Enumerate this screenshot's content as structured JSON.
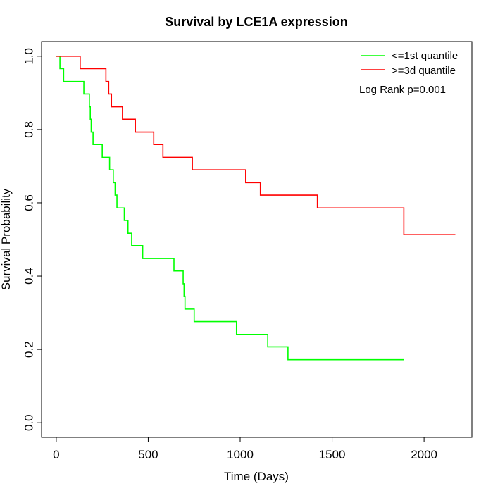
{
  "chart_data": {
    "type": "line",
    "title": "Survival by LCE1A expression",
    "xlabel": "Time (Days)",
    "ylabel": "Survival Probability",
    "xlim": [
      -80,
      2260
    ],
    "ylim": [
      -0.04,
      1.04
    ],
    "xticks": [
      0,
      500,
      1000,
      1500,
      2000
    ],
    "xtick_labels": [
      "0",
      "500",
      "1000",
      "1500",
      "2000"
    ],
    "yticks": [
      0,
      0.2,
      0.4,
      0.6,
      0.8,
      1.0
    ],
    "ytick_labels": [
      "0.0",
      "0.2",
      "0.4",
      "0.6",
      "0.8",
      "1.0"
    ],
    "grid": false,
    "legend_position": "top-right",
    "annotation": "Log Rank p=0.001",
    "series": [
      {
        "name": "<=1st quantile",
        "color": "#00ff00",
        "step": true,
        "x": [
          0,
          20,
          40,
          150,
          180,
          185,
          190,
          200,
          250,
          290,
          310,
          320,
          330,
          370,
          390,
          410,
          470,
          640,
          690,
          695,
          700,
          750,
          980,
          1150,
          1260,
          1690,
          1890
        ],
        "y": [
          1.0,
          0.966,
          0.931,
          0.897,
          0.862,
          0.828,
          0.793,
          0.759,
          0.724,
          0.69,
          0.655,
          0.621,
          0.586,
          0.552,
          0.517,
          0.483,
          0.448,
          0.414,
          0.379,
          0.345,
          0.31,
          0.276,
          0.241,
          0.207,
          0.172,
          0.172,
          0.172
        ]
      },
      {
        "name": ">=3d quantile",
        "color": "#ff0000",
        "step": true,
        "x": [
          0,
          130,
          270,
          285,
          300,
          360,
          430,
          530,
          580,
          740,
          1030,
          1110,
          1420,
          1890,
          2170
        ],
        "y": [
          1.0,
          0.966,
          0.931,
          0.897,
          0.862,
          0.828,
          0.793,
          0.759,
          0.724,
          0.69,
          0.655,
          0.621,
          0.586,
          0.513,
          0.513
        ]
      }
    ]
  }
}
